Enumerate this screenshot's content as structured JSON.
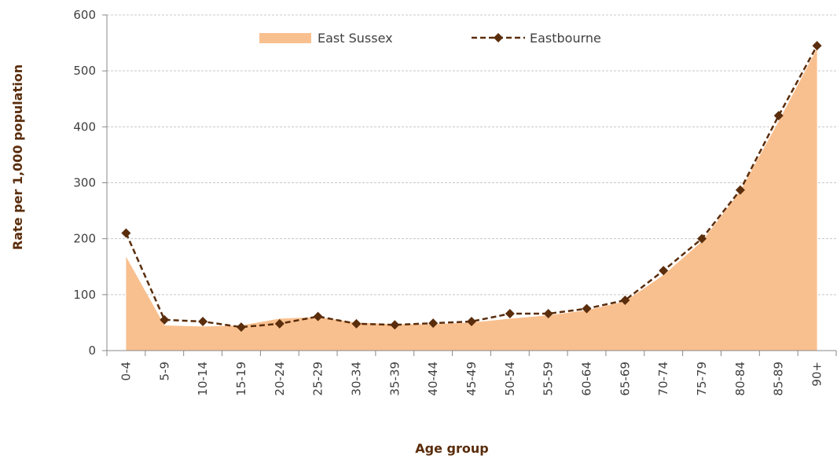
{
  "chart_data": {
    "type": "line",
    "xlabel": "Age group",
    "ylabel": "Rate per 1,000 population",
    "categories": [
      "0-4",
      "5-9",
      "10-14",
      "15-19",
      "20-24",
      "25-29",
      "30-34",
      "35-39",
      "40-44",
      "45-49",
      "50-54",
      "55-59",
      "60-64",
      "65-69",
      "70-74",
      "75-79",
      "80-84",
      "85-89",
      "90+"
    ],
    "series": [
      {
        "name": "East Sussex",
        "style": "area",
        "color": "#f9c08f",
        "values": [
          168,
          45,
          43,
          45,
          57,
          60,
          50,
          47,
          47,
          50,
          57,
          63,
          72,
          88,
          135,
          195,
          285,
          410,
          540
        ]
      },
      {
        "name": "Eastbourne",
        "style": "line",
        "color": "#5a2d0c",
        "values": [
          210,
          55,
          52,
          42,
          48,
          61,
          48,
          46,
          49,
          52,
          66,
          66,
          75,
          90,
          143,
          200,
          287,
          420,
          545
        ]
      }
    ],
    "ylim": [
      0,
      600
    ],
    "yticks": [
      0,
      100,
      200,
      300,
      400,
      500,
      600
    ],
    "grid": true
  }
}
